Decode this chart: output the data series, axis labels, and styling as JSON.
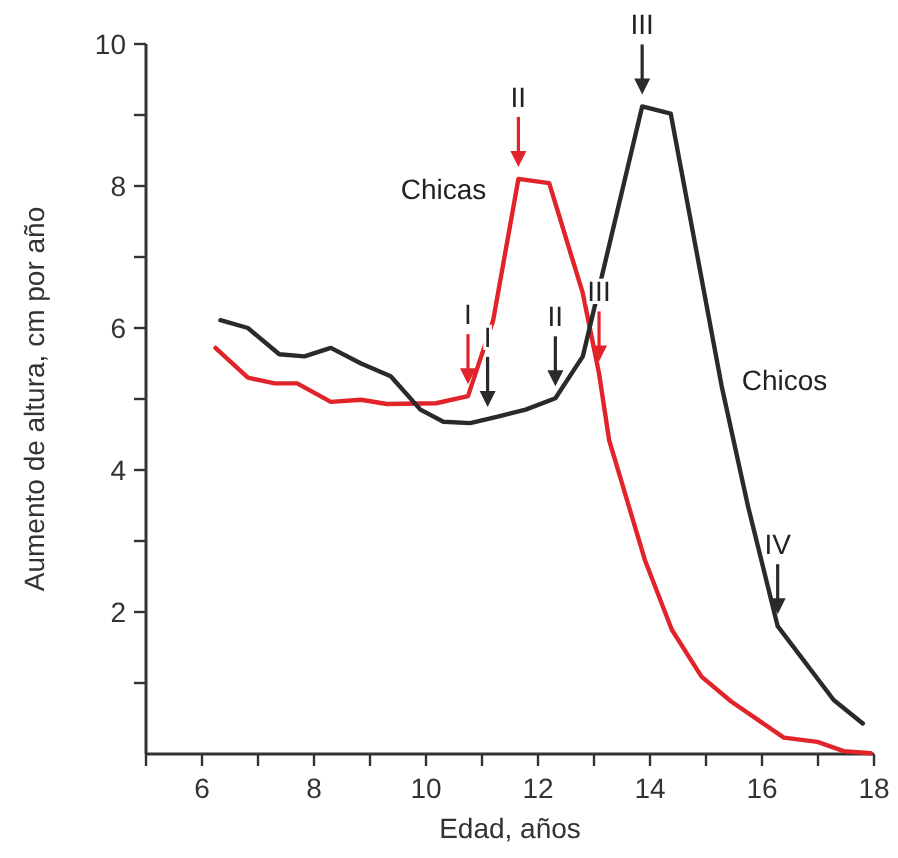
{
  "chart_data": {
    "type": "line",
    "xlabel": "Edad, años",
    "ylabel": "Aumento de altura, cm por año",
    "xlim": [
      5,
      18
    ],
    "xticks": [
      {
        "value": 5,
        "label": null
      },
      6,
      {
        "value": 7,
        "label": null
      },
      8,
      {
        "value": 9,
        "label": null
      },
      10,
      {
        "value": 11,
        "label": null
      },
      12,
      {
        "value": 13,
        "label": null
      },
      14,
      {
        "value": 15,
        "label": null
      },
      16,
      {
        "value": 17,
        "label": null
      },
      18
    ],
    "ylim": [
      0,
      10
    ],
    "yticks": [
      {
        "value": 1,
        "label": null
      },
      2,
      {
        "value": 3,
        "label": null
      },
      4,
      {
        "value": 5,
        "label": null
      },
      6,
      {
        "value": 7,
        "label": null
      },
      8,
      {
        "value": 9,
        "label": null
      },
      10
    ],
    "grid": false,
    "marker": "none",
    "line_style": "solid",
    "series": [
      {
        "name": "Chicas",
        "color": "#e0242a",
        "x": [
          6.24,
          6.82,
          7.3,
          7.7,
          8.3,
          8.84,
          9.3,
          10.18,
          10.75,
          11.2,
          11.65,
          12.2,
          12.8,
          13.09,
          13.27,
          13.91,
          14.39,
          14.92,
          15.45,
          16.39,
          16.99,
          17.46,
          17.94
        ],
        "values": [
          5.72,
          5.3,
          5.22,
          5.22,
          4.96,
          4.99,
          4.93,
          4.94,
          5.04,
          6.11,
          8.1,
          8.04,
          6.49,
          5.36,
          4.42,
          2.73,
          1.75,
          1.09,
          0.74,
          0.23,
          0.17,
          0.04,
          0.01
        ]
      },
      {
        "name": "Chicos",
        "color": "#2a2a2a",
        "x": [
          6.33,
          6.82,
          7.38,
          7.83,
          8.3,
          8.84,
          9.37,
          9.9,
          10.31,
          10.79,
          11.32,
          11.78,
          12.31,
          12.8,
          13.86,
          14.37,
          15.28,
          15.75,
          16.28,
          17.28,
          17.8
        ],
        "values": [
          6.11,
          6.0,
          5.63,
          5.6,
          5.72,
          5.5,
          5.32,
          4.85,
          4.68,
          4.66,
          4.76,
          4.85,
          5.01,
          5.6,
          9.12,
          9.02,
          5.18,
          3.49,
          1.8,
          0.76,
          0.43
        ]
      }
    ],
    "annotations": [
      {
        "text": "I",
        "x": 10.75,
        "y": 5.04
      },
      {
        "text": "II",
        "x": 11.65,
        "y": 8.1
      },
      {
        "text": "III",
        "x": 13.09,
        "y": 5.36
      },
      {
        "text": "I",
        "x": 11.1,
        "y": 4.72
      },
      {
        "text": "II",
        "x": 12.31,
        "y": 5.01
      },
      {
        "text": "III",
        "x": 13.86,
        "y": 9.12
      },
      {
        "text": "IV",
        "x": 16.28,
        "y": 1.8
      }
    ]
  }
}
